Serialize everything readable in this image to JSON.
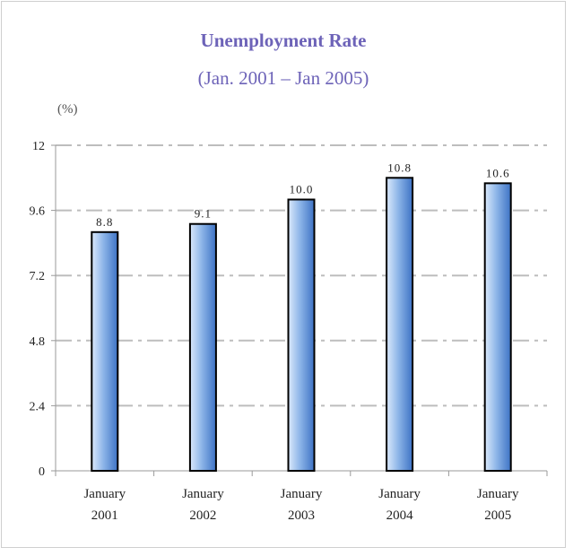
{
  "chart_data": {
    "type": "bar",
    "title": "Unemployment Rate",
    "subtitle": "(Jan. 2001 – Jan 2005)",
    "ylabel": "(%)",
    "categories": [
      [
        "January",
        "2001"
      ],
      [
        "January",
        "2002"
      ],
      [
        "January",
        "2003"
      ],
      [
        "January",
        "2004"
      ],
      [
        "January",
        "2005"
      ]
    ],
    "values": [
      8.8,
      9.1,
      10.0,
      10.8,
      10.6
    ],
    "data_labels": [
      "8.8",
      "9.1",
      "10.0",
      "10.8",
      "10.6"
    ],
    "ylim": [
      0,
      12
    ],
    "yticks": [
      0,
      2.4,
      4.8,
      7.2,
      9.6,
      12
    ],
    "ytick_labels": [
      "0",
      "2.4",
      "4.8",
      "7.2",
      "9.6",
      "12"
    ],
    "grid": true,
    "grid_style": "dash-dot",
    "legend": false,
    "colors": {
      "title": "#6d63b8",
      "bar_light": "#dbe9fb",
      "bar_mid": "#8db5e8",
      "bar_dark": "#3d72c4",
      "bar_outline": "#000000",
      "gridline": "#bdbdbd",
      "axis": "#9a9a9a"
    }
  }
}
